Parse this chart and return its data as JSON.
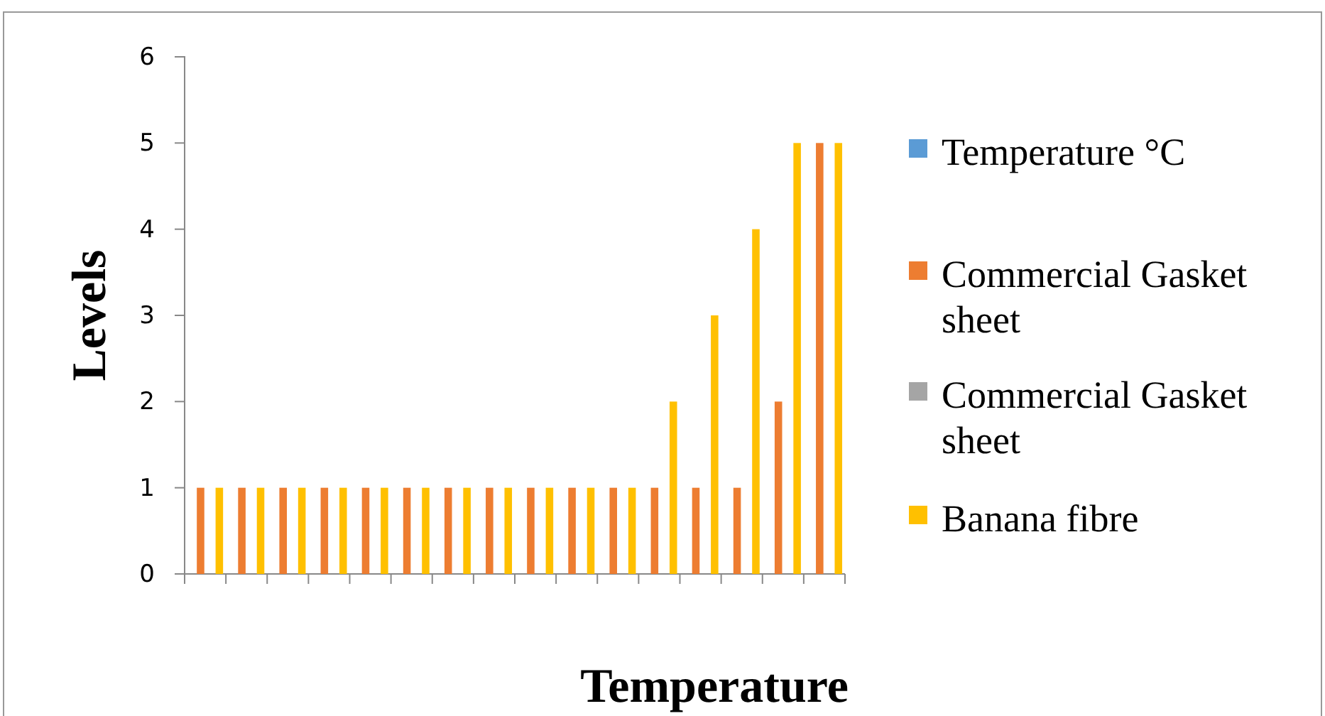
{
  "chart_data": {
    "type": "bar",
    "xlabel": "Temperature",
    "ylabel": "Levels",
    "categories": [
      null,
      null,
      null,
      null,
      null,
      null,
      null,
      null,
      null,
      null,
      null,
      null,
      null,
      null,
      null,
      null
    ],
    "series": [
      {
        "name": "Temperature °C",
        "color": "#5b9bd5",
        "values": [
          0,
          0,
          0,
          0,
          0,
          0,
          0,
          0,
          0,
          0,
          0,
          0,
          0,
          0,
          0,
          0
        ]
      },
      {
        "name": "Commercial Gasket sheet",
        "color": "#ed7d31",
        "values": [
          1,
          1,
          1,
          1,
          1,
          1,
          1,
          1,
          1,
          1,
          1,
          1,
          1,
          1,
          2,
          5
        ]
      },
      {
        "name": "Commercial Gasket sheet",
        "color": "#a5a5a5",
        "values": [
          0,
          0,
          0,
          0,
          0,
          0,
          0,
          0,
          0,
          0,
          0,
          0,
          0,
          0,
          0,
          0
        ]
      },
      {
        "name": "Banana fibre",
        "color": "#ffc000",
        "values": [
          1,
          1,
          1,
          1,
          1,
          1,
          1,
          1,
          1,
          1,
          1,
          2,
          3,
          4,
          5,
          5
        ]
      }
    ],
    "ylim": [
      0,
      6
    ],
    "yticks": [
      0,
      1,
      2,
      3,
      4,
      5,
      6
    ],
    "grid": false,
    "legend": "right"
  }
}
